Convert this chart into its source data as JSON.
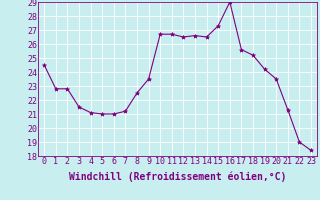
{
  "x": [
    0,
    1,
    2,
    3,
    4,
    5,
    6,
    7,
    8,
    9,
    10,
    11,
    12,
    13,
    14,
    15,
    16,
    17,
    18,
    19,
    20,
    21,
    22,
    23
  ],
  "y": [
    24.5,
    22.8,
    22.8,
    21.5,
    21.1,
    21.0,
    21.0,
    21.2,
    22.5,
    23.5,
    26.7,
    26.7,
    26.5,
    26.6,
    26.5,
    27.3,
    29.0,
    25.6,
    25.2,
    24.2,
    23.5,
    21.3,
    19.0,
    18.4
  ],
  "line_color": "#800080",
  "marker": "*",
  "marker_size": 3,
  "bg_color": "#c8eef0",
  "grid_color": "#ffffff",
  "xlabel": "Windchill (Refroidissement éolien,°C)",
  "xlabel_color": "#800080",
  "ylim": [
    18,
    29
  ],
  "yticks": [
    18,
    19,
    20,
    21,
    22,
    23,
    24,
    25,
    26,
    27,
    28,
    29
  ],
  "xticks": [
    0,
    1,
    2,
    3,
    4,
    5,
    6,
    7,
    8,
    9,
    10,
    11,
    12,
    13,
    14,
    15,
    16,
    17,
    18,
    19,
    20,
    21,
    22,
    23
  ],
  "tick_color": "#800080",
  "tick_fontsize": 6,
  "xlabel_fontsize": 7
}
